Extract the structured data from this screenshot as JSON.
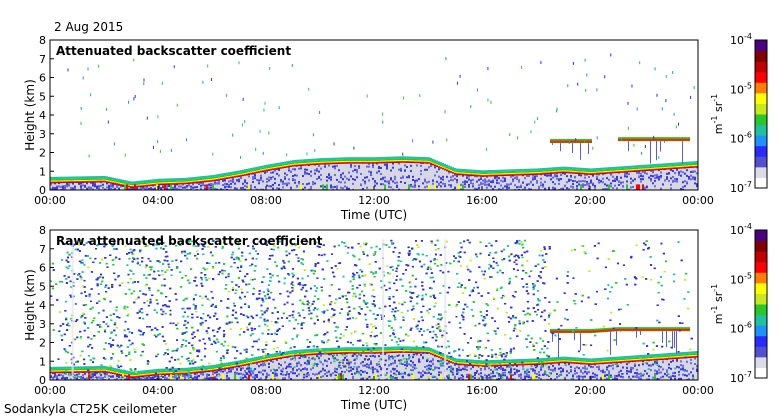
{
  "header": {
    "date": "2 Aug 2015"
  },
  "footer": {
    "instrument": "Sodankyla CT25K ceilometer"
  },
  "colors": {
    "background_fill": "#d8d8d8",
    "colormap": [
      "#ffffff",
      "#dcdce8",
      "#5050d0",
      "#2a2aff",
      "#1e90ff",
      "#20c0a0",
      "#28c828",
      "#c8e820",
      "#ffff00",
      "#ff8000",
      "#ff0000",
      "#c00000",
      "#800000",
      "#4b0082"
    ]
  },
  "chart_data": [
    {
      "type": "heatmap",
      "title": "Attenuated backscatter coefficient",
      "xlabel": "Time (UTC)",
      "ylabel": "Height (km)",
      "x_ticks": [
        "00:00",
        "04:00",
        "08:00",
        "12:00",
        "16:00",
        "20:00",
        "00:00"
      ],
      "xlim_hours": [
        0,
        24
      ],
      "y_ticks": [
        "0",
        "1",
        "2",
        "3",
        "4",
        "5",
        "6",
        "7",
        "8"
      ],
      "ylim": [
        0,
        8
      ],
      "colorbar": {
        "scale": "log",
        "range": [
          1e-07,
          0.0001
        ],
        "tick_bases": [
          "10",
          "10",
          "10",
          "10"
        ],
        "tick_exponents": [
          "-7",
          "-6",
          "-5",
          "-4"
        ],
        "label_base_1": "m",
        "label_exp_1": "-1",
        "label_base_2": "sr",
        "label_exp_2": "-1"
      },
      "features": {
        "boundary_layer_top_km": [
          [
            0,
            0.55
          ],
          [
            2,
            0.6
          ],
          [
            3,
            0.3
          ],
          [
            4,
            0.45
          ],
          [
            5,
            0.5
          ],
          [
            6,
            0.65
          ],
          [
            7,
            0.9
          ],
          [
            8,
            1.2
          ],
          [
            9,
            1.45
          ],
          [
            10,
            1.55
          ],
          [
            11,
            1.6
          ],
          [
            12,
            1.6
          ],
          [
            13,
            1.65
          ],
          [
            14,
            1.6
          ],
          [
            15,
            1.0
          ],
          [
            16,
            0.9
          ],
          [
            17,
            0.95
          ],
          [
            18,
            1.0
          ],
          [
            19,
            1.1
          ],
          [
            20,
            1.0
          ],
          [
            21,
            1.1
          ],
          [
            22,
            1.2
          ],
          [
            23,
            1.3
          ],
          [
            24,
            1.4
          ]
        ],
        "upper_cloud_km": [
          [
            18.5,
            2.6
          ],
          [
            20.0,
            2.6
          ],
          [
            21.0,
            2.7
          ],
          [
            23.7,
            2.7
          ]
        ],
        "clear_gap_hours": [
          20.0,
          21.0
        ]
      }
    },
    {
      "type": "heatmap",
      "title": "Raw attenuated backscatter coefficient",
      "xlabel": "Time (UTC)",
      "ylabel": "Height (km)",
      "x_ticks": [
        "00:00",
        "04:00",
        "08:00",
        "12:00",
        "16:00",
        "20:00",
        "00:00"
      ],
      "xlim_hours": [
        0,
        24
      ],
      "y_ticks": [
        "0",
        "1",
        "2",
        "3",
        "4",
        "5",
        "6",
        "7",
        "8"
      ],
      "ylim": [
        0,
        8
      ],
      "colorbar": {
        "scale": "log",
        "range": [
          1e-07,
          0.0001
        ],
        "tick_bases": [
          "10",
          "10",
          "10",
          "10"
        ],
        "tick_exponents": [
          "-7",
          "-6",
          "-5",
          "-4"
        ],
        "label_base_1": "m",
        "label_exp_1": "-1",
        "label_base_2": "sr",
        "label_exp_2": "-1"
      },
      "features": {
        "noise_top_km": 7.5,
        "dense_noise_hours": [
          0.5,
          18.5
        ],
        "vertical_streaks_hours": [
          0.8,
          12.3,
          14.6
        ],
        "boundary_layer_top_km": [
          [
            0,
            0.55
          ],
          [
            2,
            0.6
          ],
          [
            3,
            0.3
          ],
          [
            4,
            0.45
          ],
          [
            5,
            0.5
          ],
          [
            6,
            0.65
          ],
          [
            7,
            0.9
          ],
          [
            8,
            1.2
          ],
          [
            9,
            1.45
          ],
          [
            10,
            1.55
          ],
          [
            11,
            1.6
          ],
          [
            12,
            1.6
          ],
          [
            13,
            1.65
          ],
          [
            14,
            1.6
          ],
          [
            15,
            1.0
          ],
          [
            16,
            0.9
          ],
          [
            17,
            0.95
          ],
          [
            18,
            1.0
          ],
          [
            19,
            1.1
          ],
          [
            20,
            1.0
          ],
          [
            21,
            1.1
          ],
          [
            22,
            1.2
          ],
          [
            23,
            1.3
          ],
          [
            24,
            1.4
          ]
        ],
        "upper_cloud_km": [
          [
            18.5,
            2.6
          ],
          [
            20.0,
            2.6
          ],
          [
            21.0,
            2.7
          ],
          [
            23.7,
            2.7
          ]
        ]
      }
    }
  ]
}
